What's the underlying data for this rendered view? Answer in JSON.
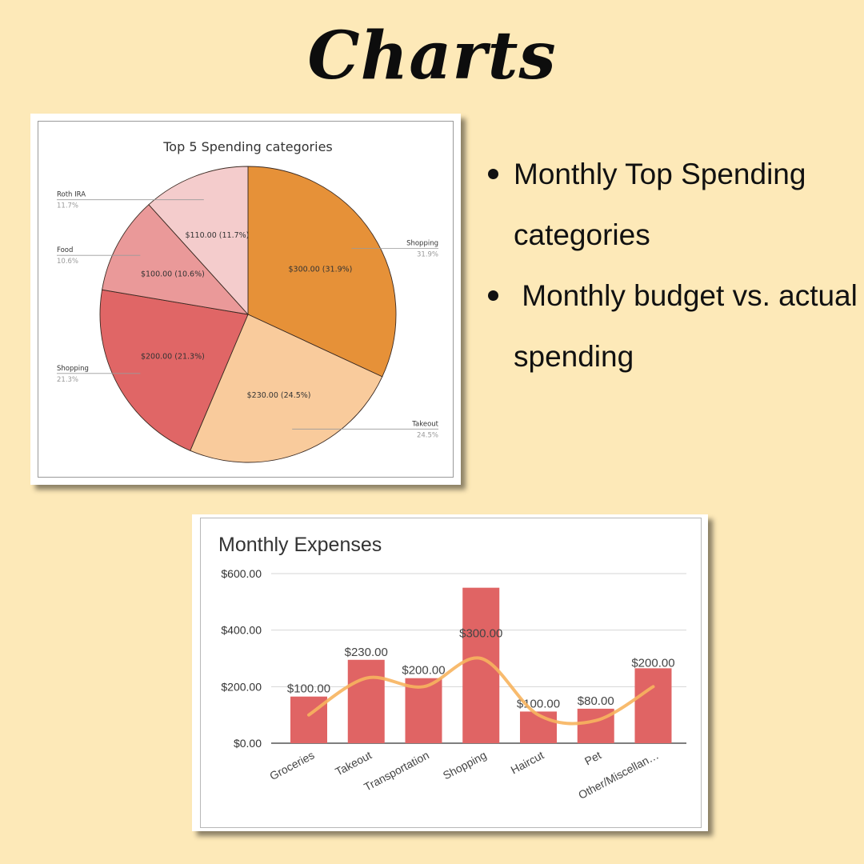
{
  "page": {
    "title": "Charts"
  },
  "bullets": [
    {
      "text": "Monthly Top Spending categories"
    },
    {
      "text": " Monthly budget vs. actual spending"
    }
  ],
  "colors": {
    "background": "#fde9b8",
    "bar": "#e06464",
    "trend_line": "#f7b45e",
    "pie": [
      "#e69138",
      "#f9cb9c",
      "#e06666",
      "#ea9999",
      "#f4cccc"
    ]
  },
  "chart_data": [
    {
      "type": "pie",
      "title": "Top 5 Spending categories",
      "slices": [
        {
          "name": "Shopping",
          "value": 300.0,
          "percent": "31.9%",
          "value_label": "$300.00 (31.9%)",
          "color": "#e69138"
        },
        {
          "name": "Takeout",
          "value": 230.0,
          "percent": "24.5%",
          "value_label": "$230.00 (24.5%)",
          "color": "#f9cb9c"
        },
        {
          "name": "Shopping",
          "value": 200.0,
          "percent": "21.3%",
          "value_label": "$200.00 (21.3%)",
          "color": "#e06666"
        },
        {
          "name": "Food",
          "value": 100.0,
          "percent": "10.6%",
          "value_label": "$100.00 (10.6%)",
          "color": "#ea9999"
        },
        {
          "name": "Roth IRA",
          "value": 110.0,
          "percent": "11.7%",
          "value_label": "$110.00 (11.7%)",
          "color": "#f4cccc"
        }
      ]
    },
    {
      "type": "bar",
      "title": "Monthly Expenses",
      "categories": [
        "Groceries",
        "Takeout",
        "Transportation",
        "Shopping",
        "Haircut",
        "Pet",
        "Other/Miscellan…"
      ],
      "values": [
        165,
        295,
        230,
        550,
        112,
        122,
        265
      ],
      "data_labels": [
        "$100.00",
        "$230.00",
        "$200.00",
        "$300.00",
        "$100.00",
        "$80.00",
        "$200.00"
      ],
      "trend_values": [
        100,
        230,
        200,
        300,
        100,
        80,
        200
      ],
      "y_ticks": [
        "$0.00",
        "$200.00",
        "$400.00",
        "$600.00"
      ],
      "ylim": [
        0,
        600
      ],
      "grid": true
    }
  ]
}
